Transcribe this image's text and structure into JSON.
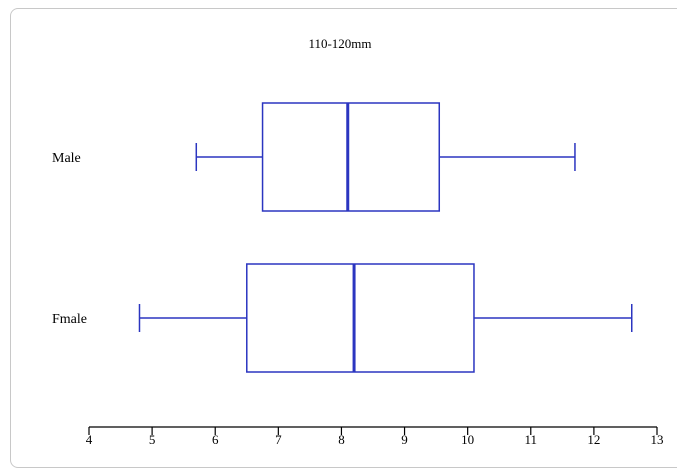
{
  "chart_data": {
    "type": "boxplot",
    "title": "110-120mm",
    "orientation": "horizontal",
    "xlim": [
      4,
      13
    ],
    "xticks": [
      "4",
      "5",
      "6",
      "7",
      "8",
      "9",
      "10",
      "11",
      "12",
      "13"
    ],
    "grid": false,
    "color": "#2b35c0",
    "series": [
      {
        "name": "Male",
        "whisker_low": 5.7,
        "q1": 6.75,
        "median": 8.1,
        "q3": 9.55,
        "whisker_high": 11.7
      },
      {
        "name": "Fmale",
        "whisker_low": 4.8,
        "q1": 6.5,
        "median": 8.2,
        "q3": 10.1,
        "whisker_high": 12.6
      }
    ]
  }
}
